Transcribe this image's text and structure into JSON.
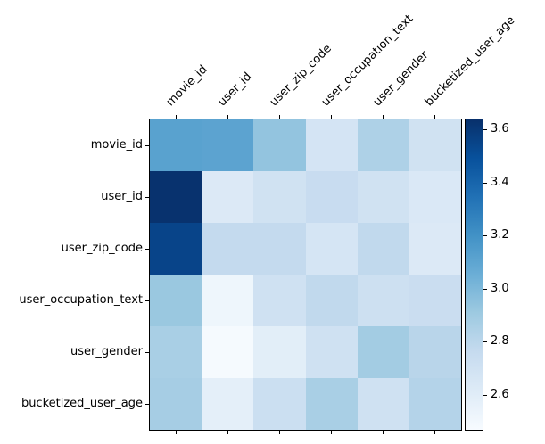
{
  "figure": {
    "background": "#ffffff",
    "text_color": "#000000"
  },
  "chart_data": {
    "type": "heatmap",
    "title": "",
    "xlabel": "",
    "ylabel": "",
    "rows": [
      "movie_id",
      "user_id",
      "user_zip_code",
      "user_occupation_text",
      "user_gender",
      "bucketized_user_age"
    ],
    "columns": [
      "movie_id",
      "user_id",
      "user_zip_code",
      "user_occupation_text",
      "user_gender",
      "bucketized_user_age"
    ],
    "values": [
      [
        3.12,
        3.11,
        2.94,
        2.68,
        2.85,
        2.7
      ],
      [
        3.63,
        2.63,
        2.7,
        2.75,
        2.7,
        2.64
      ],
      [
        3.55,
        2.77,
        2.77,
        2.67,
        2.78,
        2.63
      ],
      [
        2.92,
        2.52,
        2.71,
        2.78,
        2.72,
        2.74
      ],
      [
        2.87,
        2.48,
        2.59,
        2.71,
        2.89,
        2.81
      ],
      [
        2.88,
        2.58,
        2.73,
        2.87,
        2.71,
        2.83
      ]
    ],
    "vmin": 2.47,
    "vmax": 3.64,
    "colormap": "Blues",
    "colormap_anchors": [
      [
        0.0,
        "#f7fbff"
      ],
      [
        0.125,
        "#deebf7"
      ],
      [
        0.25,
        "#c6dbef"
      ],
      [
        0.375,
        "#9ecae1"
      ],
      [
        0.5,
        "#6baed6"
      ],
      [
        0.625,
        "#4292c6"
      ],
      [
        0.75,
        "#2171b5"
      ],
      [
        0.875,
        "#08519c"
      ],
      [
        1.0,
        "#08306b"
      ]
    ],
    "colorbar_ticks": [
      3.6,
      3.4,
      3.2,
      3.0,
      2.8,
      2.6
    ],
    "colorbar_tick_labels": [
      "3.6",
      "3.4",
      "3.2",
      "3.0",
      "2.8",
      "2.6"
    ],
    "legend_position": "right-colorbar",
    "grid": false,
    "x_tick_rotation_deg": 45,
    "tick_color": "#000000",
    "spine_color": "#000000"
  }
}
